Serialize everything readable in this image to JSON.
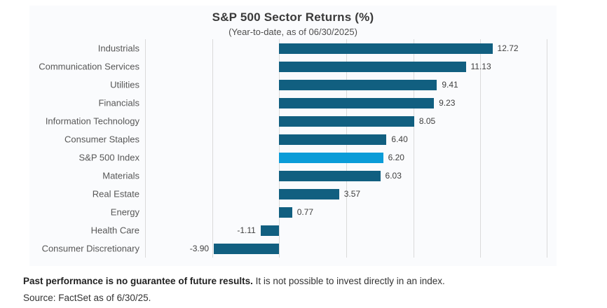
{
  "chart_data": {
    "type": "bar",
    "orientation": "horizontal",
    "title": "S&P 500 Sector Returns (%)",
    "subtitle": "(Year-to-date, as of 06/30/2025)",
    "categories": [
      "Industrials",
      "Communication Services",
      "Utilities",
      "Financials",
      "Information Technology",
      "Consumer Staples",
      "S&P 500 Index",
      "Materials",
      "Real Estate",
      "Energy",
      "Health Care",
      "Consumer Discretionary"
    ],
    "values": [
      12.72,
      11.13,
      9.41,
      9.23,
      8.05,
      6.4,
      6.2,
      6.03,
      3.57,
      0.77,
      -1.11,
      -3.9
    ],
    "value_labels": [
      "12.72",
      "11.13",
      "9.41",
      "9.23",
      "8.05",
      "6.40",
      "6.20",
      "6.03",
      "3.57",
      "0.77",
      "-1.11",
      "-3.90"
    ],
    "highlight_index": 6,
    "highlight_category": "S&P 500 Index",
    "xlabel": "",
    "ylabel": "",
    "xlim": [
      -8,
      16
    ],
    "gridline_step": 4,
    "grid": true,
    "legend": false,
    "value_label_position": "outside-end"
  },
  "colors": {
    "bar": "#115f80",
    "highlight_bar": "#0a9cd8",
    "gridline": "#dadada",
    "chart_background": "#fafbfd"
  },
  "footer": {
    "disclaimer_bold": "Past performance is no guarantee of future results.",
    "disclaimer_rest": "It is not possible to invest directly in an index.",
    "source": "Source: FactSet as of 6/30/25."
  }
}
